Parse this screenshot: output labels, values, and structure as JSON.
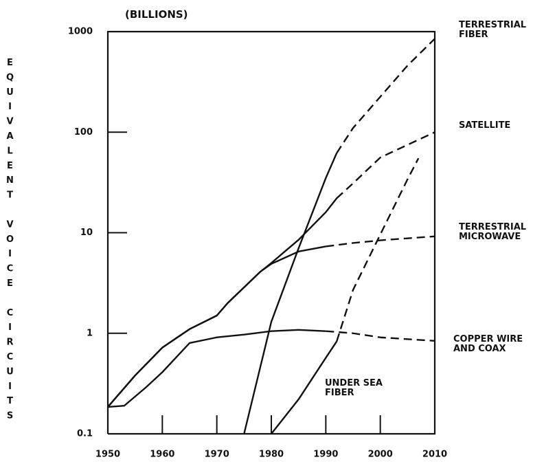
{
  "chart_data": {
    "type": "line",
    "y_unit": "(BILLIONS)",
    "ylabel": "EQUIVALENT VOICE CIRCUITS",
    "log_scale": true,
    "xlim": [
      1950,
      2010
    ],
    "xticks": [
      1950,
      1960,
      1970,
      1980,
      1990,
      2000,
      2010
    ],
    "ylim": [
      0.1,
      1000
    ],
    "yticks": [
      0.1,
      1,
      10,
      100,
      1000
    ],
    "color": "#111111",
    "series": [
      {
        "name": "TERRESTRIAL FIBER",
        "projected_from": 1992,
        "x": [
          1975,
          1980,
          1985,
          1990,
          1992,
          1995,
          2000,
          2005,
          2010
        ],
        "values": [
          0.1,
          1.3,
          7,
          35,
          62,
          110,
          225,
          460,
          850
        ]
      },
      {
        "name": "SATELLITE",
        "projected_from": 1992,
        "x": [
          1950,
          1955,
          1960,
          1965,
          1970,
          1972,
          1978,
          1980,
          1985,
          1990,
          1992,
          1995,
          2000,
          2010
        ],
        "values": [
          0.185,
          0.38,
          0.72,
          1.1,
          1.5,
          2,
          4.1,
          5,
          8.5,
          16,
          22,
          31,
          56,
          100
        ]
      },
      {
        "name": "TERRESTRIAL MICROWAVE",
        "projected_from": 1990,
        "x": [
          1950,
          1955,
          1960,
          1965,
          1970,
          1972,
          1978,
          1980,
          1985,
          1990,
          1995,
          2000,
          2010
        ],
        "values": [
          0.185,
          0.38,
          0.72,
          1.1,
          1.5,
          2,
          4.1,
          4.9,
          6.5,
          7.3,
          7.9,
          8.4,
          9.2
        ]
      },
      {
        "name": "COPPER WIRE AND COAX",
        "projected_from": 1990,
        "x": [
          1950,
          1953,
          1957,
          1960,
          1965,
          1970,
          1975,
          1980,
          1985,
          1990,
          1995,
          2000,
          2010
        ],
        "values": [
          0.185,
          0.19,
          0.29,
          0.41,
          0.8,
          0.91,
          0.97,
          1.05,
          1.08,
          1.05,
          1.0,
          0.91,
          0.84
        ]
      },
      {
        "name": "UNDER SEA FIBER",
        "projected_from": 1992,
        "x": [
          1980,
          1985,
          1990,
          1992,
          1995,
          2000,
          2005,
          2007
        ],
        "values": [
          0.1,
          0.22,
          0.57,
          0.83,
          2.7,
          9.6,
          34,
          55
        ]
      }
    ]
  }
}
